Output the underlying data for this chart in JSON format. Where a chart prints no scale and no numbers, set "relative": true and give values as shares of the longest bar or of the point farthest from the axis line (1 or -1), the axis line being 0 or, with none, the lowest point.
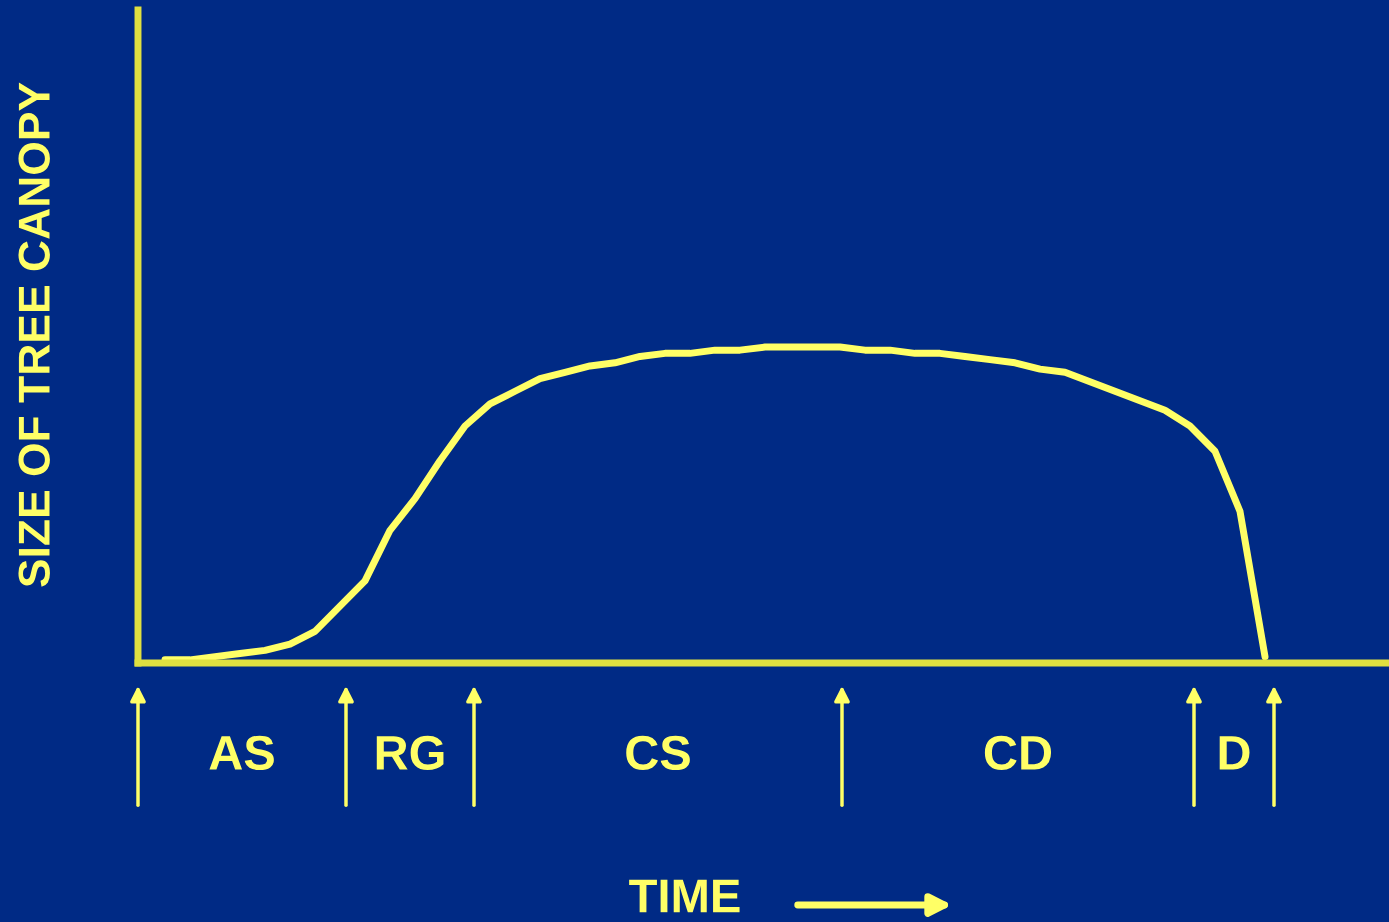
{
  "chart_data": {
    "type": "line",
    "relative": true,
    "xlabel": "TIME",
    "ylabel": "SIZE OF TREE CANOPY",
    "annotations": [
      "AS",
      "RG",
      "CS",
      "CD",
      "D"
    ],
    "categories": [
      null,
      null,
      null,
      null,
      null,
      null,
      null,
      null,
      null,
      null,
      null,
      null,
      null,
      null,
      null,
      null,
      null,
      null,
      null,
      null,
      null,
      null,
      null,
      null,
      null,
      null,
      null,
      null,
      null,
      null,
      null,
      null,
      null,
      null,
      null,
      null,
      null,
      null,
      null,
      null,
      null,
      null,
      null,
      null,
      null
    ],
    "series": [
      {
        "color": "#ffff66",
        "values": [
          0.01,
          0.01,
          0.02,
          0.03,
          0.04,
          0.06,
          0.1,
          0.18,
          0.26,
          0.42,
          0.52,
          0.64,
          0.75,
          0.82,
          0.86,
          0.9,
          0.92,
          0.94,
          0.95,
          0.97,
          0.98,
          0.98,
          0.99,
          0.99,
          1.0,
          1.0,
          1.0,
          1.0,
          0.99,
          0.99,
          0.98,
          0.98,
          0.97,
          0.96,
          0.95,
          0.93,
          0.92,
          0.89,
          0.86,
          0.83,
          0.8,
          0.75,
          0.67,
          0.48,
          0.02
        ]
      }
    ],
    "grid": false,
    "legend": false,
    "marker": "none",
    "line_style": "solid"
  }
}
